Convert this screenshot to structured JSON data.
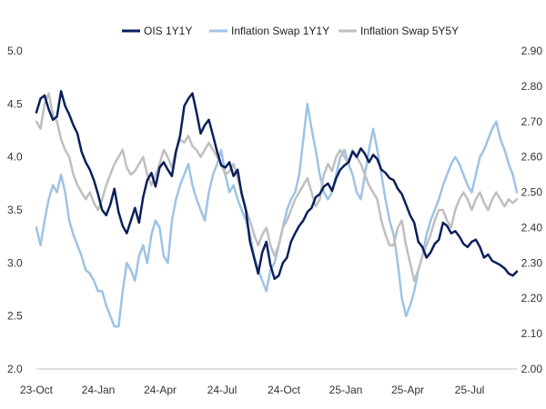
{
  "chart_data": {
    "type": "line",
    "title": "",
    "legend_position": "top",
    "x_tick_labels": [
      "23-Oct",
      "24-Jan",
      "24-Apr",
      "24-Jul",
      "24-Oct",
      "25-Jan",
      "25-Apr",
      "25-Jul"
    ],
    "left_axis": {
      "ylim": [
        2.0,
        5.0
      ],
      "ticks": [
        "2.0",
        "2.5",
        "3.0",
        "3.5",
        "4.0",
        "4.5",
        "5.0"
      ]
    },
    "right_axis": {
      "ylim": [
        2.0,
        2.9
      ],
      "ticks": [
        "2.00",
        "2.10",
        "2.20",
        "2.30",
        "2.40",
        "2.50",
        "2.60",
        "2.70",
        "2.80",
        "2.90"
      ]
    },
    "series": [
      {
        "name": "OIS 1Y1Y",
        "axis": "left",
        "color": "#0a1f5c",
        "values": [
          4.42,
          4.55,
          4.58,
          4.45,
          4.35,
          4.38,
          4.62,
          4.48,
          4.4,
          4.3,
          4.22,
          4.05,
          3.95,
          3.88,
          3.78,
          3.65,
          3.5,
          3.45,
          3.55,
          3.7,
          3.48,
          3.35,
          3.28,
          3.4,
          3.52,
          3.38,
          3.62,
          3.78,
          3.85,
          3.72,
          3.9,
          3.95,
          3.88,
          3.82,
          4.05,
          4.2,
          4.48,
          4.55,
          4.6,
          4.42,
          4.22,
          4.3,
          4.35,
          4.2,
          4.05,
          3.92,
          3.9,
          3.95,
          3.82,
          3.88,
          3.65,
          3.5,
          3.2,
          3.05,
          2.9,
          3.1,
          3.2,
          2.98,
          2.85,
          2.88,
          3.0,
          3.05,
          3.2,
          3.28,
          3.35,
          3.4,
          3.48,
          3.52,
          3.62,
          3.65,
          3.72,
          3.75,
          3.68,
          3.8,
          3.88,
          3.92,
          3.95,
          4.05,
          4.0,
          4.08,
          4.03,
          3.95,
          4.02,
          3.98,
          3.88,
          3.85,
          3.8,
          3.78,
          3.7,
          3.65,
          3.55,
          3.45,
          3.38,
          3.2,
          3.15,
          3.05,
          3.1,
          3.18,
          3.22,
          3.38,
          3.35,
          3.28,
          3.3,
          3.25,
          3.18,
          3.15,
          3.2,
          3.22,
          3.15,
          3.05,
          3.08,
          3.02,
          3.0,
          2.98,
          2.95,
          2.9,
          2.88,
          2.92
        ]
      },
      {
        "name": "Inflation Swap 1Y1Y",
        "axis": "right",
        "color": "#9dc3e6",
        "values": [
          2.4,
          2.35,
          2.42,
          2.48,
          2.52,
          2.5,
          2.55,
          2.5,
          2.42,
          2.38,
          2.35,
          2.32,
          2.28,
          2.27,
          2.25,
          2.22,
          2.22,
          2.18,
          2.15,
          2.12,
          2.12,
          2.22,
          2.3,
          2.28,
          2.25,
          2.32,
          2.35,
          2.3,
          2.38,
          2.42,
          2.4,
          2.32,
          2.3,
          2.42,
          2.48,
          2.52,
          2.55,
          2.58,
          2.52,
          2.48,
          2.45,
          2.42,
          2.5,
          2.55,
          2.58,
          2.62,
          2.55,
          2.5,
          2.52,
          2.48,
          2.45,
          2.42,
          2.38,
          2.32,
          2.28,
          2.25,
          2.22,
          2.28,
          2.3,
          2.35,
          2.4,
          2.45,
          2.48,
          2.5,
          2.55,
          2.65,
          2.75,
          2.68,
          2.62,
          2.55,
          2.5,
          2.48,
          2.5,
          2.55,
          2.6,
          2.62,
          2.58,
          2.55,
          2.5,
          2.48,
          2.55,
          2.62,
          2.68,
          2.62,
          2.55,
          2.48,
          2.42,
          2.38,
          2.3,
          2.2,
          2.15,
          2.18,
          2.22,
          2.28,
          2.32,
          2.38,
          2.42,
          2.45,
          2.48,
          2.52,
          2.55,
          2.58,
          2.6,
          2.58,
          2.55,
          2.52,
          2.5,
          2.55,
          2.6,
          2.62,
          2.65,
          2.68,
          2.7,
          2.65,
          2.62,
          2.58,
          2.55,
          2.5
        ]
      },
      {
        "name": "Inflation Swap 5Y5Y",
        "axis": "right",
        "color": "#bfbfbf",
        "values": [
          2.7,
          2.68,
          2.75,
          2.78,
          2.72,
          2.7,
          2.65,
          2.62,
          2.6,
          2.55,
          2.52,
          2.5,
          2.48,
          2.5,
          2.47,
          2.45,
          2.48,
          2.52,
          2.55,
          2.58,
          2.6,
          2.62,
          2.57,
          2.55,
          2.56,
          2.58,
          2.6,
          2.55,
          2.52,
          2.55,
          2.58,
          2.62,
          2.6,
          2.57,
          2.62,
          2.65,
          2.64,
          2.66,
          2.63,
          2.62,
          2.6,
          2.62,
          2.64,
          2.62,
          2.6,
          2.58,
          2.55,
          2.56,
          2.58,
          2.54,
          2.5,
          2.45,
          2.42,
          2.38,
          2.35,
          2.38,
          2.4,
          2.35,
          2.32,
          2.35,
          2.4,
          2.42,
          2.45,
          2.48,
          2.5,
          2.52,
          2.54,
          2.5,
          2.46,
          2.48,
          2.55,
          2.58,
          2.56,
          2.6,
          2.62,
          2.6,
          2.58,
          2.62,
          2.6,
          2.58,
          2.55,
          2.52,
          2.5,
          2.48,
          2.42,
          2.38,
          2.35,
          2.35,
          2.4,
          2.42,
          2.35,
          2.3,
          2.25,
          2.28,
          2.32,
          2.35,
          2.38,
          2.42,
          2.45,
          2.45,
          2.42,
          2.4,
          2.45,
          2.48,
          2.5,
          2.48,
          2.45,
          2.48,
          2.5,
          2.47,
          2.45,
          2.48,
          2.5,
          2.48,
          2.46,
          2.48,
          2.47,
          2.48
        ]
      }
    ]
  }
}
